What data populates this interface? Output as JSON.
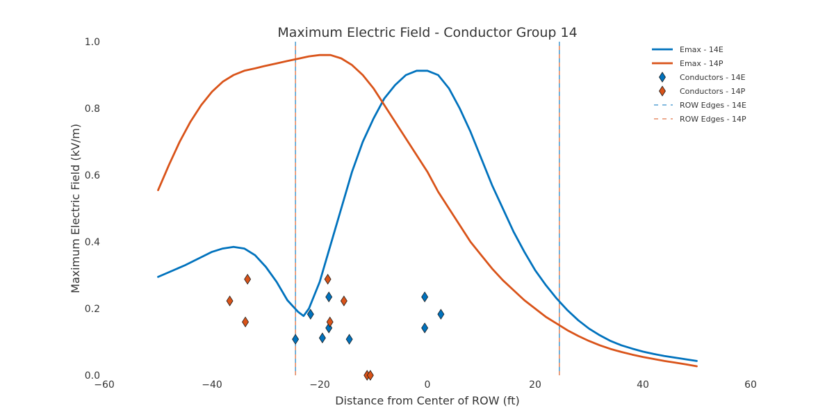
{
  "chart_data": {
    "type": "line",
    "title": "Maximum Electric Field - Conductor Group 14",
    "xlabel": "Distance from Center of ROW (ft)",
    "ylabel": "Maximum Electric Field (kV/m)",
    "xlim": [
      -60,
      60
    ],
    "ylim": [
      0,
      1.0
    ],
    "x_ticks": [
      -60,
      -40,
      -20,
      0,
      20,
      40,
      60
    ],
    "x_tick_labels": [
      "−60",
      "−40",
      "−20",
      "0",
      "20",
      "40",
      "60"
    ],
    "y_ticks": [
      0,
      0.2,
      0.4,
      0.6,
      0.8,
      1.0
    ],
    "y_tick_labels": [
      "0.0",
      "0.2",
      "0.4",
      "0.6",
      "0.8",
      "1.0"
    ],
    "grid": false,
    "legend_position": "top-right",
    "colors": {
      "14E": "#0072bd",
      "14P": "#d95319"
    },
    "series": [
      {
        "name": "Emax - 14E",
        "color": "#0072bd",
        "x": [
          -50,
          -45,
          -40,
          -38,
          -36,
          -34,
          -32,
          -30,
          -28,
          -26,
          -24,
          -23,
          -22,
          -20,
          -18,
          -16,
          -14,
          -12,
          -10,
          -8,
          -6,
          -4,
          -2,
          0,
          2,
          4,
          6,
          8,
          10,
          12,
          14,
          16,
          18,
          20,
          22,
          24,
          26,
          28,
          30,
          32,
          34,
          36,
          38,
          40,
          42,
          44,
          46,
          48,
          50
        ],
        "y": [
          0.295,
          0.33,
          0.37,
          0.38,
          0.385,
          0.38,
          0.36,
          0.325,
          0.28,
          0.225,
          0.19,
          0.178,
          0.2,
          0.28,
          0.39,
          0.5,
          0.61,
          0.7,
          0.77,
          0.83,
          0.87,
          0.9,
          0.913,
          0.913,
          0.9,
          0.86,
          0.8,
          0.73,
          0.65,
          0.57,
          0.5,
          0.43,
          0.37,
          0.315,
          0.27,
          0.23,
          0.195,
          0.165,
          0.14,
          0.12,
          0.103,
          0.09,
          0.08,
          0.071,
          0.064,
          0.058,
          0.053,
          0.048,
          0.043
        ]
      },
      {
        "name": "Emax - 14P",
        "color": "#d95319",
        "x": [
          -50,
          -48,
          -46,
          -44,
          -42,
          -40,
          -38,
          -36,
          -34,
          -32,
          -30,
          -28,
          -26,
          -24,
          -22,
          -20,
          -18,
          -16,
          -14,
          -12,
          -10,
          -8,
          -6,
          -4,
          -2,
          0,
          2,
          4,
          6,
          8,
          10,
          12,
          14,
          16,
          18,
          20,
          22,
          24,
          26,
          28,
          30,
          32,
          34,
          36,
          38,
          40,
          42,
          44,
          46,
          48,
          50
        ],
        "y": [
          0.555,
          0.63,
          0.7,
          0.76,
          0.81,
          0.85,
          0.88,
          0.9,
          0.913,
          0.92,
          0.928,
          0.935,
          0.942,
          0.949,
          0.956,
          0.96,
          0.96,
          0.95,
          0.93,
          0.9,
          0.86,
          0.81,
          0.76,
          0.71,
          0.66,
          0.61,
          0.55,
          0.5,
          0.45,
          0.4,
          0.36,
          0.32,
          0.285,
          0.255,
          0.225,
          0.2,
          0.175,
          0.155,
          0.135,
          0.118,
          0.103,
          0.09,
          0.079,
          0.07,
          0.062,
          0.055,
          0.049,
          0.043,
          0.038,
          0.033,
          0.027
        ]
      }
    ],
    "conductors": [
      {
        "name": "Conductors - 14E",
        "color": "#0072bd",
        "points": [
          [
            -24.5,
            0.108
          ],
          [
            -21.7,
            0.183
          ],
          [
            -19.5,
            0.112
          ],
          [
            -18.3,
            0.235
          ],
          [
            -18.3,
            0.142
          ],
          [
            -14.5,
            0.108
          ],
          [
            -0.5,
            0.235
          ],
          [
            -0.5,
            0.142
          ],
          [
            2.5,
            0.183
          ]
        ]
      },
      {
        "name": "Conductors - 14P",
        "color": "#d95319",
        "points": [
          [
            -36.7,
            0.223
          ],
          [
            -33.8,
            0.16
          ],
          [
            -33.4,
            0.288
          ],
          [
            -18.5,
            0.288
          ],
          [
            -18.1,
            0.16
          ],
          [
            -15.5,
            0.223
          ],
          [
            -11.2,
            0.0
          ],
          [
            -10.6,
            0.0
          ]
        ]
      }
    ],
    "row_edges": [
      {
        "name": "ROW Edges - 14E",
        "color": "#0072bd",
        "x": [
          -24.5,
          24.5
        ]
      },
      {
        "name": "ROW Edges - 14P",
        "color": "#d95319",
        "x": [
          -24.5,
          24.5
        ]
      }
    ]
  }
}
